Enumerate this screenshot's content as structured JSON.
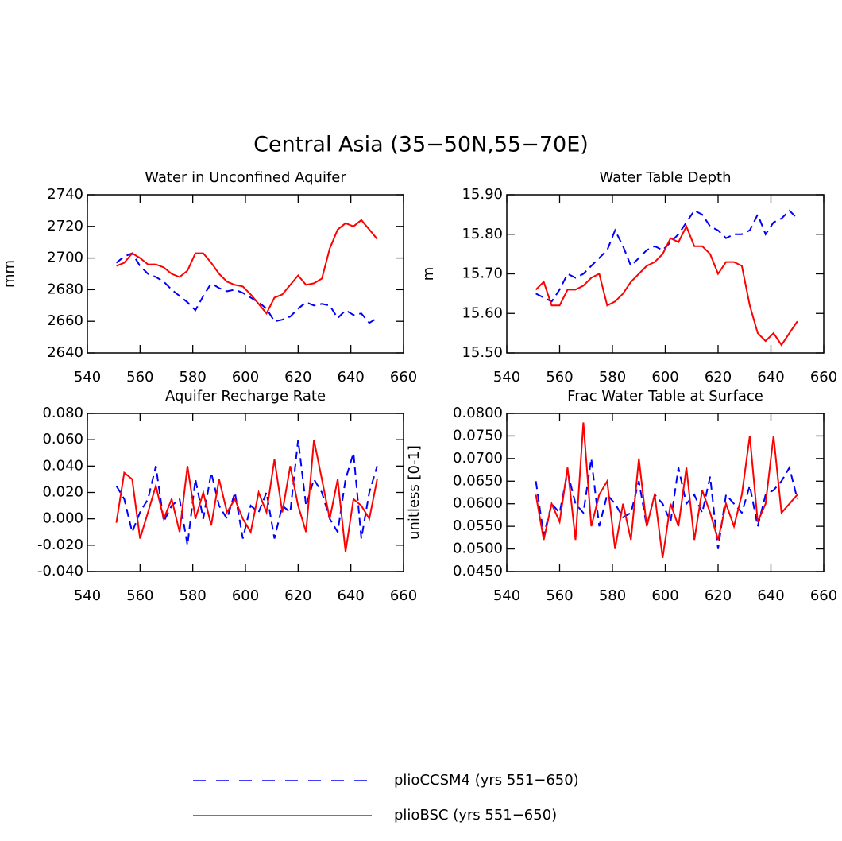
{
  "title": "Central Asia (35−50N,55−70E)",
  "chart_data": [
    {
      "type": "line",
      "title": "Water in Unconfined Aquifer",
      "ylabel": "mm",
      "x": [
        551,
        554,
        557,
        560,
        563,
        566,
        569,
        572,
        575,
        578,
        581,
        584,
        587,
        590,
        593,
        596,
        599,
        602,
        605,
        608,
        611,
        614,
        617,
        620,
        623,
        626,
        629,
        632,
        635,
        638,
        641,
        644,
        647,
        650
      ],
      "xlim": [
        540,
        660
      ],
      "xticks": [
        540,
        560,
        580,
        600,
        620,
        640,
        660
      ],
      "ylim": [
        2640,
        2740
      ],
      "yticks": [
        2640,
        2660,
        2680,
        2700,
        2720,
        2740
      ],
      "series": [
        {
          "name": "plioCCSM4 (yrs 551−650)",
          "color": "#0000ff",
          "dashed": true,
          "values": [
            2697,
            2701,
            2703,
            2695,
            2690,
            2688,
            2685,
            2680,
            2676,
            2672,
            2667,
            2676,
            2684,
            2681,
            2679,
            2680,
            2678,
            2675,
            2672,
            2668,
            2660,
            2661,
            2663,
            2668,
            2672,
            2670,
            2671,
            2670,
            2662,
            2667,
            2664,
            2665,
            2659,
            2662
          ]
        },
        {
          "name": "plioBSC (yrs 551−650)",
          "color": "#ff0000",
          "dashed": false,
          "values": [
            2695,
            2697,
            2703,
            2700,
            2696,
            2696,
            2694,
            2690,
            2688,
            2692,
            2703,
            2703,
            2697,
            2690,
            2685,
            2683,
            2682,
            2677,
            2671,
            2665,
            2675,
            2677,
            2683,
            2689,
            2683,
            2684,
            2687,
            2706,
            2718,
            2722,
            2720,
            2724,
            2718,
            2712
          ]
        }
      ]
    },
    {
      "type": "line",
      "title": "Water Table Depth",
      "ylabel": "m",
      "x": [
        551,
        554,
        557,
        560,
        563,
        566,
        569,
        572,
        575,
        578,
        581,
        584,
        587,
        590,
        593,
        596,
        599,
        602,
        605,
        608,
        611,
        614,
        617,
        620,
        623,
        626,
        629,
        632,
        635,
        638,
        641,
        644,
        647,
        650
      ],
      "xlim": [
        540,
        660
      ],
      "xticks": [
        540,
        560,
        580,
        600,
        620,
        640,
        660
      ],
      "ylim": [
        15.5,
        15.9
      ],
      "yticks": [
        {
          "value": 15.5,
          "label": "15.50"
        },
        {
          "value": 15.6,
          "label": "15.60"
        },
        {
          "value": 15.7,
          "label": "15.70"
        },
        {
          "value": 15.8,
          "label": "15.80"
        },
        {
          "value": 15.9,
          "label": "15.90"
        }
      ],
      "series": [
        {
          "name": "plioCCSM4 (yrs 551−650)",
          "color": "#0000ff",
          "dashed": true,
          "values": [
            15.65,
            15.64,
            15.63,
            15.66,
            15.7,
            15.69,
            15.7,
            15.72,
            15.74,
            15.76,
            15.81,
            15.77,
            15.72,
            15.74,
            15.76,
            15.77,
            15.76,
            15.78,
            15.8,
            15.83,
            15.86,
            15.85,
            15.82,
            15.81,
            15.79,
            15.8,
            15.8,
            15.81,
            15.85,
            15.8,
            15.83,
            15.84,
            15.86,
            15.84
          ]
        },
        {
          "name": "plioBSC (yrs 551−650)",
          "color": "#ff0000",
          "dashed": false,
          "values": [
            15.66,
            15.68,
            15.62,
            15.62,
            15.66,
            15.66,
            15.67,
            15.69,
            15.7,
            15.62,
            15.63,
            15.65,
            15.68,
            15.7,
            15.72,
            15.73,
            15.75,
            15.79,
            15.78,
            15.82,
            15.77,
            15.77,
            15.75,
            15.7,
            15.73,
            15.73,
            15.72,
            15.62,
            15.55,
            15.53,
            15.55,
            15.52,
            15.55,
            15.58
          ]
        }
      ]
    },
    {
      "type": "line",
      "title": "Aquifer Recharge Rate",
      "x": [
        551,
        554,
        557,
        560,
        563,
        566,
        569,
        572,
        575,
        578,
        581,
        584,
        587,
        590,
        593,
        596,
        599,
        602,
        605,
        608,
        611,
        614,
        617,
        620,
        623,
        626,
        629,
        632,
        635,
        638,
        641,
        644,
        647,
        650
      ],
      "xlim": [
        540,
        660
      ],
      "xticks": [
        540,
        560,
        580,
        600,
        620,
        640,
        660
      ],
      "ylim": [
        -0.04,
        0.08
      ],
      "yticks": [
        {
          "value": -0.04,
          "label": "-0.040"
        },
        {
          "value": -0.02,
          "label": "-0.020"
        },
        {
          "value": 0,
          "label": "0.000"
        },
        {
          "value": 0.02,
          "label": "0.020"
        },
        {
          "value": 0.04,
          "label": "0.040"
        },
        {
          "value": 0.06,
          "label": "0.060"
        },
        {
          "value": 0.08,
          "label": "0.080"
        }
      ],
      "series": [
        {
          "name": "plioCCSM4 (yrs 551−650)",
          "color": "#0000ff",
          "dashed": true,
          "values": [
            0.025,
            0.015,
            -0.01,
            0.005,
            0.015,
            0.04,
            -0.002,
            0.01,
            0.015,
            -0.02,
            0.03,
            0.0,
            0.035,
            0.01,
            0.0,
            0.02,
            -0.015,
            0.01,
            0.005,
            0.02,
            -0.015,
            0.01,
            0.005,
            0.06,
            0.01,
            0.03,
            0.02,
            0.0,
            -0.01,
            0.03,
            0.05,
            -0.015,
            0.02,
            0.04
          ]
        },
        {
          "name": "plioBSC (yrs 551−650)",
          "color": "#ff0000",
          "dashed": false,
          "values": [
            -0.003,
            0.035,
            0.03,
            -0.015,
            0.005,
            0.025,
            0.0,
            0.015,
            -0.01,
            0.04,
            0.0,
            0.02,
            -0.005,
            0.03,
            0.005,
            0.015,
            0.0,
            -0.01,
            0.02,
            0.005,
            0.045,
            0.005,
            0.04,
            0.01,
            -0.01,
            0.06,
            0.03,
            0.0,
            0.03,
            -0.025,
            0.015,
            0.01,
            0.0,
            0.03
          ]
        }
      ]
    },
    {
      "type": "line",
      "title": "Frac Water Table at Surface",
      "ylabel": "unitless [0-1]",
      "x": [
        551,
        554,
        557,
        560,
        563,
        566,
        569,
        572,
        575,
        578,
        581,
        584,
        587,
        590,
        593,
        596,
        599,
        602,
        605,
        608,
        611,
        614,
        617,
        620,
        623,
        626,
        629,
        632,
        635,
        638,
        641,
        644,
        647,
        650
      ],
      "xlim": [
        540,
        660
      ],
      "xticks": [
        540,
        560,
        580,
        600,
        620,
        640,
        660
      ],
      "ylim": [
        0.045,
        0.08
      ],
      "yticks": [
        {
          "value": 0.045,
          "label": "0.0450"
        },
        {
          "value": 0.05,
          "label": "0.0500"
        },
        {
          "value": 0.055,
          "label": "0.0550"
        },
        {
          "value": 0.06,
          "label": "0.0600"
        },
        {
          "value": 0.065,
          "label": "0.0650"
        },
        {
          "value": 0.07,
          "label": "0.0700"
        },
        {
          "value": 0.075,
          "label": "0.0750"
        },
        {
          "value": 0.08,
          "label": "0.0800"
        }
      ],
      "series": [
        {
          "name": "plioCCSM4 (yrs 551−650)",
          "color": "#0000ff",
          "dashed": true,
          "values": [
            0.065,
            0.053,
            0.06,
            0.058,
            0.067,
            0.06,
            0.058,
            0.07,
            0.055,
            0.062,
            0.06,
            0.057,
            0.058,
            0.065,
            0.055,
            0.062,
            0.06,
            0.056,
            0.068,
            0.06,
            0.062,
            0.058,
            0.066,
            0.05,
            0.062,
            0.06,
            0.058,
            0.064,
            0.055,
            0.062,
            0.063,
            0.065,
            0.068,
            0.061
          ]
        },
        {
          "name": "plioBSC (yrs 551−650)",
          "color": "#ff0000",
          "dashed": false,
          "values": [
            0.062,
            0.052,
            0.06,
            0.056,
            0.068,
            0.052,
            0.078,
            0.055,
            0.062,
            0.065,
            0.05,
            0.06,
            0.052,
            0.07,
            0.055,
            0.062,
            0.048,
            0.06,
            0.055,
            0.068,
            0.052,
            0.063,
            0.058,
            0.052,
            0.06,
            0.055,
            0.062,
            0.075,
            0.056,
            0.06,
            0.075,
            0.058,
            0.06,
            0.062
          ]
        }
      ]
    }
  ]
}
